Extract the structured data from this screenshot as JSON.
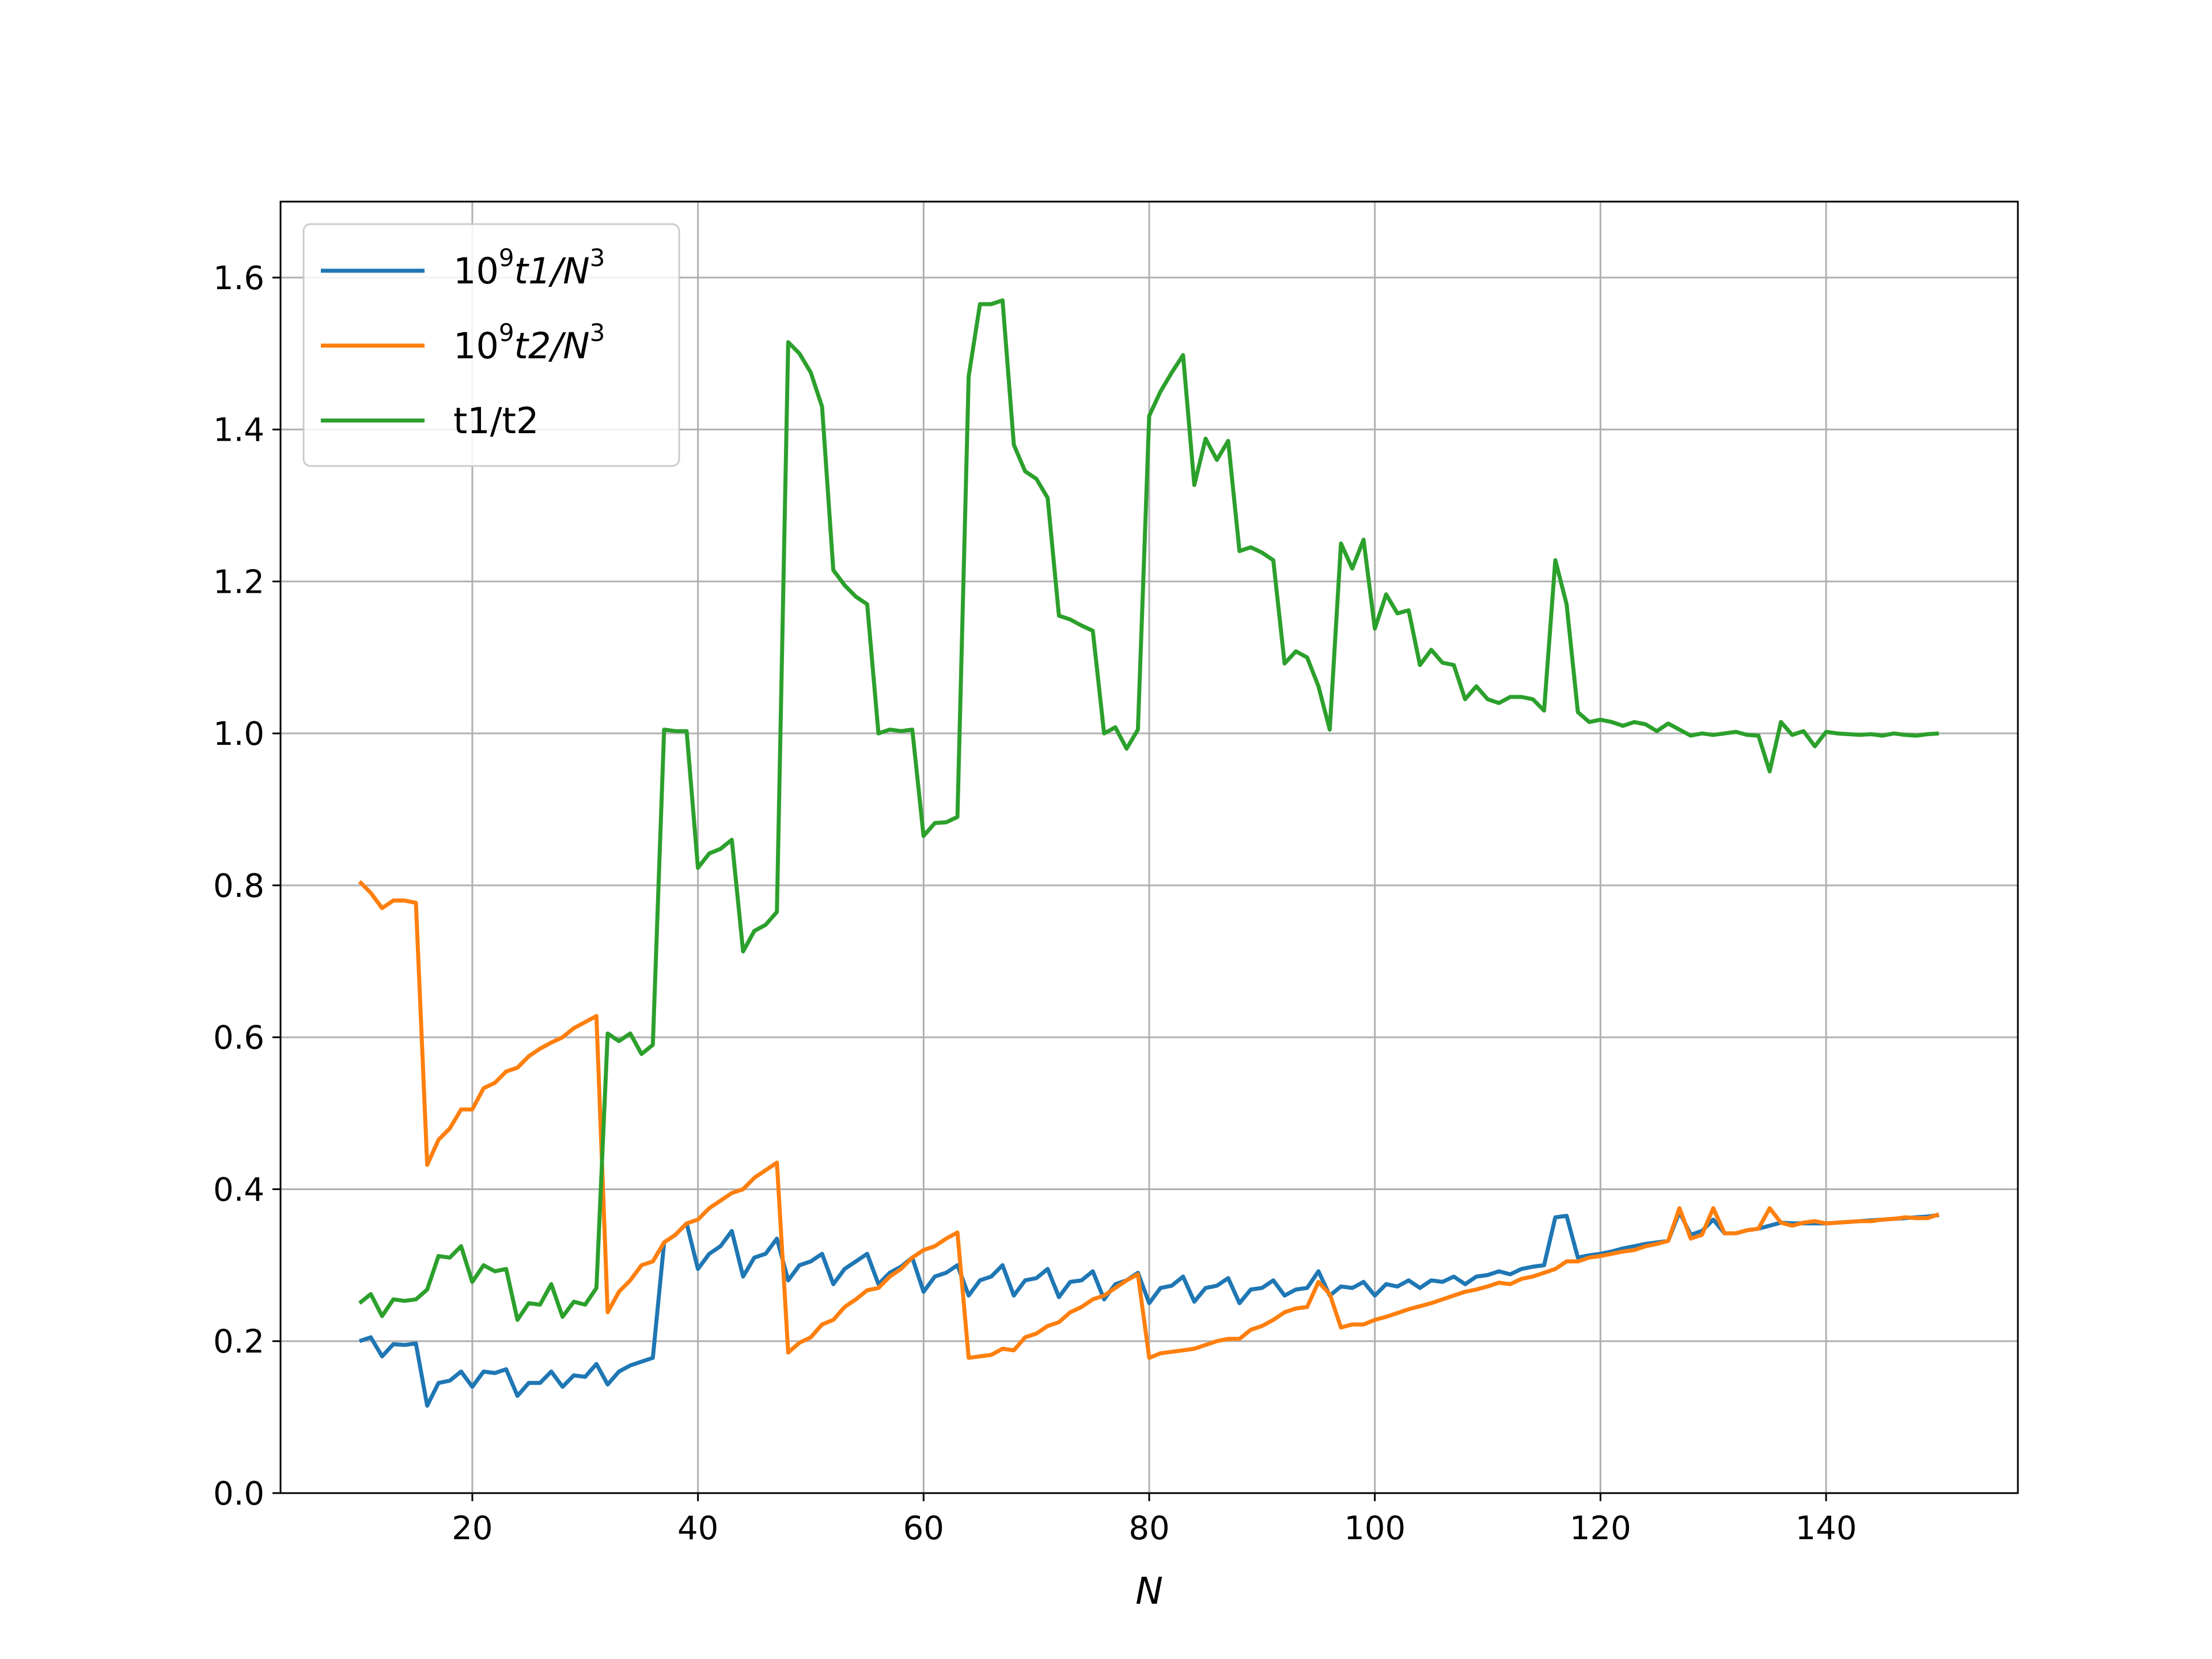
{
  "chart_data": {
    "type": "line",
    "title": "",
    "xlabel": "N",
    "ylabel": "",
    "xlim": [
      3,
      157
    ],
    "ylim": [
      0.0,
      1.7
    ],
    "xticks": [
      20,
      40,
      60,
      80,
      100,
      120,
      140
    ],
    "xtick_labels": [
      "20",
      "40",
      "60",
      "80",
      "100",
      "120",
      "140"
    ],
    "yticks": [
      0.0,
      0.2,
      0.4,
      0.6,
      0.8,
      1.0,
      1.2,
      1.4,
      1.6
    ],
    "ytick_labels": [
      "0.0",
      "0.2",
      "0.4",
      "0.6",
      "0.8",
      "1.0",
      "1.2",
      "1.4",
      "1.6"
    ],
    "grid": true,
    "legend_position": "upper-left",
    "x": [
      10,
      11,
      12,
      13,
      14,
      15,
      16,
      17,
      18,
      19,
      20,
      21,
      22,
      23,
      24,
      25,
      26,
      27,
      28,
      29,
      30,
      31,
      32,
      33,
      34,
      35,
      36,
      37,
      38,
      39,
      40,
      41,
      42,
      43,
      44,
      45,
      46,
      47,
      48,
      49,
      50,
      51,
      52,
      53,
      54,
      55,
      56,
      57,
      58,
      59,
      60,
      61,
      62,
      63,
      64,
      65,
      66,
      67,
      68,
      69,
      70,
      71,
      72,
      73,
      74,
      75,
      76,
      77,
      78,
      79,
      80,
      81,
      82,
      83,
      84,
      85,
      86,
      87,
      88,
      89,
      90,
      91,
      92,
      93,
      94,
      95,
      96,
      97,
      98,
      99,
      100,
      101,
      102,
      103,
      104,
      105,
      106,
      107,
      108,
      109,
      110,
      111,
      112,
      113,
      114,
      115,
      116,
      117,
      118,
      119,
      120,
      121,
      122,
      123,
      124,
      125,
      126,
      127,
      128,
      129,
      130,
      131,
      132,
      133,
      134,
      135,
      136,
      137,
      138,
      139,
      140,
      141,
      142,
      143,
      144,
      145,
      146,
      147,
      148,
      149,
      150
    ],
    "series": [
      {
        "name": "10⁹t1/N³",
        "legend_base": "10",
        "legend_sup1": "9",
        "legend_mid": "t1/N",
        "legend_sup2": "3",
        "color": "#1f77b4",
        "values": [
          0.2,
          0.205,
          0.18,
          0.196,
          0.195,
          0.197,
          0.115,
          0.145,
          0.148,
          0.16,
          0.14,
          0.16,
          0.158,
          0.163,
          0.128,
          0.145,
          0.145,
          0.16,
          0.14,
          0.155,
          0.153,
          0.17,
          0.143,
          0.16,
          0.168,
          0.173,
          0.178,
          0.33,
          0.34,
          0.355,
          0.295,
          0.315,
          0.325,
          0.345,
          0.285,
          0.31,
          0.315,
          0.335,
          0.28,
          0.3,
          0.305,
          0.315,
          0.275,
          0.295,
          0.305,
          0.315,
          0.275,
          0.29,
          0.298,
          0.31,
          0.265,
          0.285,
          0.29,
          0.3,
          0.26,
          0.28,
          0.285,
          0.3,
          0.26,
          0.28,
          0.283,
          0.295,
          0.258,
          0.278,
          0.28,
          0.292,
          0.255,
          0.275,
          0.28,
          0.29,
          0.25,
          0.27,
          0.273,
          0.285,
          0.252,
          0.27,
          0.273,
          0.283,
          0.25,
          0.268,
          0.27,
          0.28,
          0.26,
          0.268,
          0.27,
          0.292,
          0.26,
          0.272,
          0.27,
          0.278,
          0.26,
          0.275,
          0.272,
          0.28,
          0.27,
          0.28,
          0.278,
          0.285,
          0.275,
          0.285,
          0.287,
          0.292,
          0.288,
          0.295,
          0.298,
          0.3,
          0.363,
          0.365,
          0.31,
          0.313,
          0.315,
          0.318,
          0.322,
          0.325,
          0.328,
          0.33,
          0.332,
          0.37,
          0.34,
          0.345,
          0.36,
          0.342,
          0.342,
          0.346,
          0.348,
          0.352,
          0.356,
          0.355,
          0.355,
          0.355,
          0.355,
          0.356,
          0.357,
          0.358,
          0.359,
          0.36,
          0.361,
          0.362,
          0.363,
          0.364,
          0.366
        ]
      },
      {
        "name": "10⁹t2/N³",
        "legend_base": "10",
        "legend_sup1": "9",
        "legend_mid": "t2/N",
        "legend_sup2": "3",
        "color": "#ff7f0e",
        "values": [
          0.805,
          0.79,
          0.77,
          0.78,
          0.78,
          0.777,
          0.432,
          0.465,
          0.48,
          0.505,
          0.505,
          0.533,
          0.54,
          0.555,
          0.56,
          0.575,
          0.585,
          0.593,
          0.6,
          0.612,
          0.62,
          0.628,
          0.238,
          0.265,
          0.28,
          0.3,
          0.305,
          0.33,
          0.34,
          0.355,
          0.36,
          0.375,
          0.385,
          0.395,
          0.4,
          0.415,
          0.425,
          0.435,
          0.185,
          0.198,
          0.205,
          0.222,
          0.228,
          0.245,
          0.255,
          0.267,
          0.27,
          0.285,
          0.295,
          0.31,
          0.32,
          0.325,
          0.335,
          0.343,
          0.178,
          0.18,
          0.182,
          0.19,
          0.188,
          0.205,
          0.21,
          0.22,
          0.225,
          0.238,
          0.245,
          0.255,
          0.26,
          0.27,
          0.28,
          0.288,
          0.178,
          0.184,
          0.186,
          0.188,
          0.19,
          0.195,
          0.2,
          0.203,
          0.203,
          0.215,
          0.22,
          0.228,
          0.238,
          0.243,
          0.245,
          0.278,
          0.262,
          0.218,
          0.222,
          0.222,
          0.228,
          0.232,
          0.237,
          0.242,
          0.246,
          0.25,
          0.255,
          0.26,
          0.265,
          0.268,
          0.272,
          0.277,
          0.275,
          0.282,
          0.285,
          0.29,
          0.295,
          0.305,
          0.305,
          0.31,
          0.312,
          0.315,
          0.318,
          0.32,
          0.325,
          0.328,
          0.332,
          0.375,
          0.335,
          0.34,
          0.375,
          0.342,
          0.342,
          0.346,
          0.348,
          0.375,
          0.356,
          0.352,
          0.356,
          0.358,
          0.355,
          0.356,
          0.357,
          0.358,
          0.358,
          0.36,
          0.361,
          0.363,
          0.362,
          0.362,
          0.367
        ]
      },
      {
        "name": "t1/t2",
        "legend_base": "t1/t2",
        "legend_sup1": "",
        "legend_mid": "",
        "legend_sup2": "",
        "color": "#2ca02c",
        "values": [
          0.25,
          0.262,
          0.233,
          0.255,
          0.253,
          0.255,
          0.268,
          0.312,
          0.31,
          0.325,
          0.278,
          0.3,
          0.292,
          0.295,
          0.228,
          0.25,
          0.248,
          0.275,
          0.232,
          0.252,
          0.248,
          0.27,
          0.605,
          0.595,
          0.605,
          0.578,
          0.59,
          1.005,
          1.003,
          1.003,
          0.823,
          0.842,
          0.848,
          0.86,
          0.713,
          0.74,
          0.748,
          0.765,
          1.515,
          1.5,
          1.475,
          1.43,
          1.215,
          1.195,
          1.18,
          1.17,
          1.0,
          1.005,
          1.003,
          1.005,
          0.865,
          0.882,
          0.883,
          0.89,
          1.47,
          1.565,
          1.565,
          1.57,
          1.38,
          1.345,
          1.335,
          1.31,
          1.155,
          1.15,
          1.142,
          1.135,
          1.0,
          1.008,
          0.98,
          1.005,
          1.418,
          1.45,
          1.475,
          1.498,
          1.327,
          1.388,
          1.36,
          1.385,
          1.24,
          1.245,
          1.238,
          1.228,
          1.092,
          1.108,
          1.1,
          1.062,
          1.005,
          1.25,
          1.217,
          1.255,
          1.138,
          1.183,
          1.158,
          1.162,
          1.09,
          1.11,
          1.093,
          1.09,
          1.045,
          1.062,
          1.045,
          1.04,
          1.048,
          1.048,
          1.045,
          1.03,
          1.228,
          1.17,
          1.028,
          1.015,
          1.018,
          1.015,
          1.01,
          1.015,
          1.012,
          1.003,
          1.013,
          1.005,
          0.997,
          1.0,
          0.998,
          1.0,
          1.002,
          0.998,
          0.997,
          0.95,
          1.015,
          0.998,
          1.003,
          0.983,
          1.002,
          1.0,
          0.999,
          0.998,
          0.999,
          0.997,
          1.0,
          0.998,
          0.997,
          0.999,
          1.0
        ]
      }
    ]
  }
}
